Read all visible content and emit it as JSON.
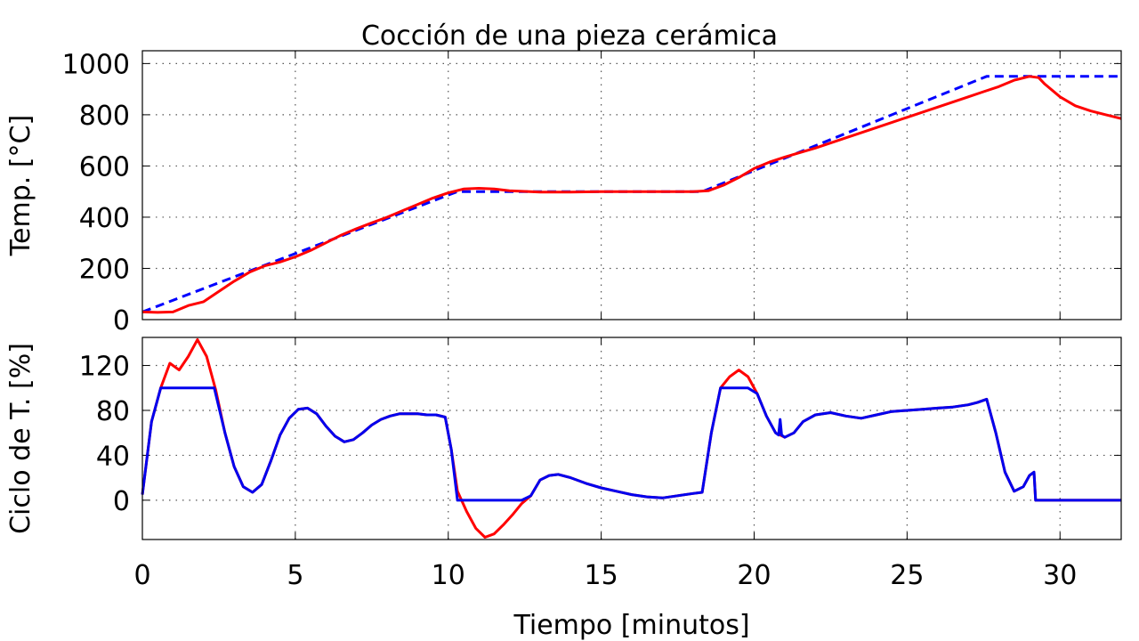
{
  "title": "Cocción de una pieza cerámica",
  "colors": {
    "actual": "#ff0000",
    "setpoint": "#0000ff",
    "control": "#0000ee",
    "grid": "#555555"
  },
  "chart_data": [
    {
      "type": "line",
      "name": "temperature",
      "ylabel": "Temp. [°C]",
      "xlim": [
        0,
        32
      ],
      "ylim": [
        0,
        1050
      ],
      "yticks": [
        0,
        200,
        400,
        600,
        800,
        1000
      ],
      "series": [
        {
          "key": "setpoint",
          "style": "dashed",
          "color": "#0000ff",
          "x": [
            0,
            10.3,
            18.3,
            27.6,
            32
          ],
          "y": [
            30,
            500,
            500,
            950,
            950
          ]
        },
        {
          "key": "measured",
          "style": "solid",
          "color": "#ff0000",
          "x": [
            0,
            0.5,
            1,
            1.5,
            2,
            2.5,
            3,
            3.5,
            4,
            4.5,
            5,
            5.5,
            6,
            6.5,
            7,
            7.5,
            8,
            8.5,
            9,
            9.5,
            10,
            10.5,
            11,
            11.5,
            12,
            13,
            14,
            15,
            16,
            17,
            18,
            18.5,
            19,
            19.5,
            20,
            20.5,
            21,
            22,
            23,
            24,
            25,
            26,
            27,
            27.5,
            28,
            28.5,
            29,
            29.3,
            29.5,
            30,
            30.5,
            31,
            31.5,
            32
          ],
          "y": [
            30,
            28,
            30,
            55,
            70,
            110,
            150,
            185,
            210,
            225,
            245,
            270,
            300,
            330,
            355,
            378,
            400,
            425,
            450,
            475,
            495,
            510,
            513,
            510,
            503,
            498,
            498,
            500,
            500,
            500,
            500,
            503,
            525,
            555,
            590,
            615,
            635,
            670,
            710,
            750,
            790,
            830,
            870,
            890,
            910,
            935,
            950,
            945,
            920,
            870,
            835,
            815,
            800,
            785
          ]
        }
      ]
    },
    {
      "type": "line",
      "name": "duty",
      "xlabel": "Tiempo [minutos]",
      "ylabel": "Ciclo de T. [%]",
      "xlim": [
        0,
        32
      ],
      "ylim": [
        -35,
        145
      ],
      "yticks": [
        0,
        40,
        80,
        120
      ],
      "xticks": [
        0,
        5,
        10,
        15,
        20,
        25,
        30
      ],
      "series": [
        {
          "key": "raw",
          "color": "#ff0000",
          "x": [
            0,
            0.3,
            0.6,
            0.9,
            1.2,
            1.5,
            1.8,
            2.1,
            2.4,
            2.7,
            3.0,
            3.3,
            3.6,
            3.9,
            4.2,
            4.5,
            4.8,
            5.1,
            5.4,
            5.7,
            6.0,
            6.3,
            6.6,
            6.9,
            7.2,
            7.5,
            7.8,
            8.1,
            8.4,
            8.7,
            9.0,
            9.3,
            9.6,
            9.9,
            10.1,
            10.3,
            10.6,
            10.9,
            11.2,
            11.5,
            11.8,
            12.1,
            12.4,
            12.7,
            13.0,
            13.3,
            13.6,
            14.0,
            14.5,
            15.0,
            15.5,
            16.0,
            16.5,
            17.0,
            17.5,
            18.0,
            18.3,
            18.6,
            18.9,
            19.2,
            19.5,
            19.8,
            20.1,
            20.4,
            20.7,
            21.0,
            21.3,
            21.6,
            22.0,
            22.5,
            23.0,
            23.5,
            24.0,
            24.5,
            25.0,
            25.5,
            26.0,
            26.5,
            27.0,
            27.3,
            27.6,
            27.9,
            28.2,
            28.5,
            28.8,
            29.0,
            29.15,
            29.2,
            29.3,
            30,
            31,
            32
          ],
          "y": [
            5,
            70,
            100,
            122,
            116,
            128,
            143,
            128,
            98,
            60,
            30,
            12,
            7,
            14,
            35,
            58,
            73,
            81,
            82,
            77,
            66,
            57,
            52,
            54,
            60,
            67,
            72,
            75,
            77,
            77,
            77,
            76,
            76,
            74,
            45,
            8,
            -10,
            -25,
            -33,
            -30,
            -22,
            -13,
            -3,
            4,
            18,
            22,
            23,
            20,
            15,
            11,
            8,
            5,
            3,
            2,
            4,
            6,
            7,
            60,
            100,
            110,
            116,
            110,
            95,
            75,
            60,
            56,
            60,
            70,
            76,
            78,
            75,
            73,
            76,
            79,
            80,
            81,
            82,
            83,
            85,
            87,
            90,
            60,
            25,
            8,
            12,
            22,
            25,
            0,
            0,
            0,
            0,
            0
          ]
        },
        {
          "key": "clipped",
          "color": "#0000ee",
          "x": [
            0,
            0.3,
            0.6,
            2.35,
            2.7,
            3.0,
            3.3,
            3.6,
            3.9,
            4.2,
            4.5,
            4.8,
            5.1,
            5.4,
            5.7,
            6.0,
            6.3,
            6.6,
            6.9,
            7.2,
            7.5,
            7.8,
            8.1,
            8.4,
            8.7,
            9.0,
            9.3,
            9.6,
            9.9,
            10.1,
            10.3,
            10.35,
            12.4,
            12.7,
            13.0,
            13.3,
            13.6,
            14.0,
            14.5,
            15.0,
            15.5,
            16.0,
            16.5,
            17.0,
            17.5,
            18.0,
            18.3,
            18.6,
            18.9,
            19.8,
            20.1,
            20.4,
            20.7,
            20.8,
            20.85,
            20.9,
            21.0,
            21.3,
            21.6,
            22.0,
            22.5,
            23.0,
            23.5,
            24.0,
            24.5,
            25.0,
            25.5,
            26.0,
            26.5,
            27.0,
            27.3,
            27.6,
            27.9,
            28.2,
            28.5,
            28.8,
            29.0,
            29.15,
            29.2,
            29.3,
            30,
            31,
            32
          ],
          "y": [
            5,
            70,
            100,
            100,
            60,
            30,
            12,
            7,
            14,
            35,
            58,
            73,
            81,
            82,
            77,
            66,
            57,
            52,
            54,
            60,
            67,
            72,
            75,
            77,
            77,
            77,
            76,
            76,
            74,
            45,
            0,
            0,
            0,
            4,
            18,
            22,
            23,
            20,
            15,
            11,
            8,
            5,
            3,
            2,
            4,
            6,
            7,
            60,
            100,
            100,
            95,
            75,
            60,
            58,
            72,
            58,
            56,
            60,
            70,
            76,
            78,
            75,
            73,
            76,
            79,
            80,
            81,
            82,
            83,
            85,
            87,
            90,
            60,
            25,
            8,
            12,
            22,
            25,
            0,
            0,
            0,
            0,
            0
          ]
        }
      ]
    }
  ]
}
